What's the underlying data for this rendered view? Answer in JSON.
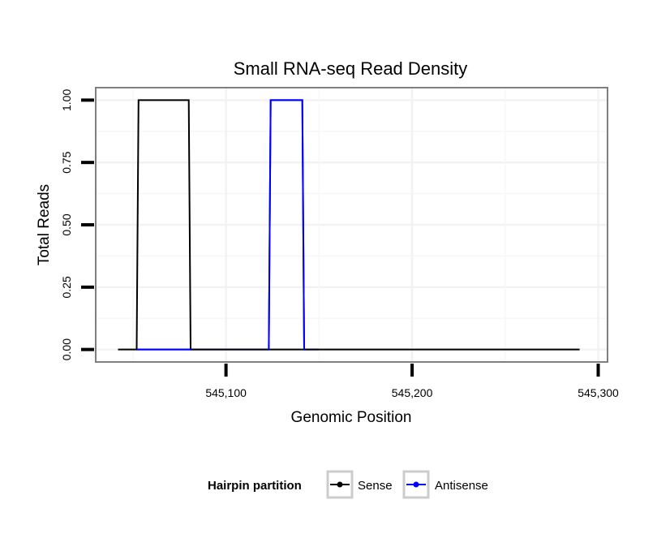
{
  "chart_data": {
    "type": "line",
    "title": "Small RNA-seq Read Density",
    "xlabel": "Genomic Position",
    "ylabel": "Total Reads",
    "xlim": [
      545030,
      545305
    ],
    "ylim": [
      -0.05,
      1.05
    ],
    "x_ticks": [
      545100,
      545200,
      545300
    ],
    "x_tick_labels": [
      "545,100",
      "545,200",
      "545,300"
    ],
    "y_ticks": [
      0,
      0.25,
      0.5,
      0.75,
      1
    ],
    "y_tick_labels": [
      "0.00",
      "0.25",
      "0.50",
      "0.75",
      "1.00"
    ],
    "grid": true,
    "legend": {
      "title": "Hairpin partition",
      "position": "bottom"
    },
    "series": [
      {
        "name": "Sense",
        "color": "#000000",
        "x": [
          545042,
          545052,
          545053,
          545080,
          545081,
          545290
        ],
        "y": [
          0,
          0,
          1,
          1,
          0,
          0
        ]
      },
      {
        "name": "Antisense",
        "color": "#0000ff",
        "x": [
          545052,
          545123,
          545124,
          545141,
          545142,
          545150
        ],
        "y": [
          0,
          0,
          1,
          1,
          0,
          0
        ]
      }
    ]
  }
}
